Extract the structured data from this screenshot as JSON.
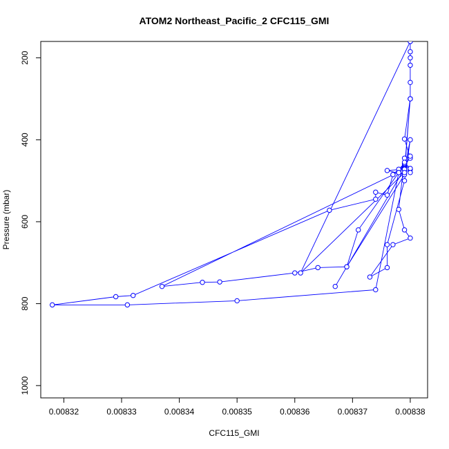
{
  "chart_data": {
    "type": "line",
    "title": "ATOM2 Northeast_Pacific_2 CFC115_GMI",
    "xlabel": "CFC115_GMI",
    "ylabel": "Pressure (mbar)",
    "xlim": [
      0.008316,
      0.008383
    ],
    "ylim": [
      1030,
      160
    ],
    "y_reversed": true,
    "grid": false,
    "legend": "none",
    "series_color": "#0000ff",
    "x_ticks": [
      0.00832,
      0.00833,
      0.00834,
      0.00835,
      0.00836,
      0.00837,
      0.00838
    ],
    "x_tick_labels": [
      "0.00832",
      "0.00833",
      "0.00834",
      "0.00835",
      "0.00836",
      "0.00837",
      "0.00838"
    ],
    "y_ticks": [
      200,
      400,
      600,
      800,
      1000
    ],
    "y_tick_labels": [
      "200",
      "400",
      "600",
      "800",
      "1000"
    ],
    "series": [
      {
        "x": [
          0.00838,
          0.00838,
          0.00838,
          0.008379,
          0.00838,
          0.008379,
          0.00838,
          0.008379,
          0.008379,
          0.008378,
          0.008377,
          0.008376,
          0.008374,
          0.008374,
          0.008366,
          0.008332,
          0.008329,
          0.008318,
          0.008331,
          0.00835,
          0.008374,
          0.008378,
          0.00838,
          0.008379,
          0.008378,
          0.008379,
          0.00838,
          0.008377,
          0.008373,
          0.008376,
          0.008376,
          0.008379,
          0.00838,
          0.008379,
          0.008367,
          0.008369,
          0.008371,
          0.008378,
          0.008379,
          0.00838,
          0.00838,
          0.008379,
          0.008376,
          0.008379,
          0.008369,
          0.008364,
          0.00836,
          0.008347,
          0.008344,
          0.008337,
          0.008379,
          0.00838,
          0.00838,
          0.00838,
          0.008361,
          0.008379,
          0.00838,
          0.00838,
          0.00838
        ],
        "y": [
          185,
          218,
          300,
          398,
          445,
          462,
          472,
          460,
          458,
          472,
          485,
          535,
          528,
          545,
          572,
          780,
          783,
          803,
          803,
          793,
          766,
          480,
          440,
          445,
          570,
          620,
          640,
          656,
          735,
          712,
          656,
          500,
          400,
          470,
          758,
          710,
          620,
          480,
          455,
          470,
          480,
          472,
          475,
          485,
          710,
          712,
          725,
          747,
          748,
          758,
          472,
          300,
          260,
          160,
          725,
          480,
          300,
          200,
          160
        ]
      }
    ]
  }
}
